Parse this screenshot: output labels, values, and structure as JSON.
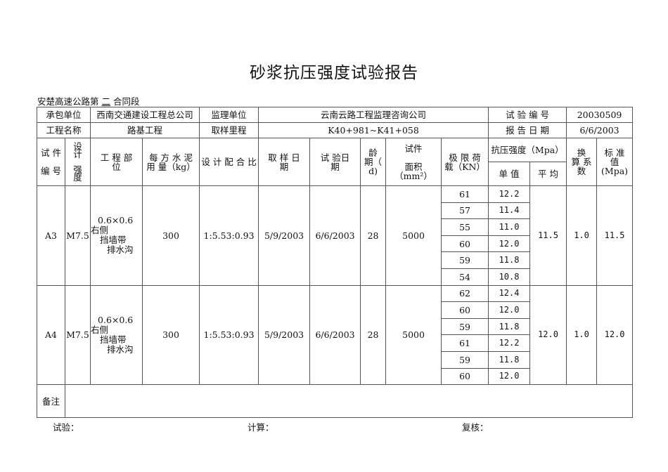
{
  "title": "砂浆抗压强度试验报告",
  "subtitle": {
    "prefix": "安楚高速公路第",
    "section": "二",
    "suffix": "合同段"
  },
  "info": {
    "contractor_label": "承包单位",
    "contractor": "西南交通建设工程总公司",
    "supervisor_label": "监理单位",
    "supervisor": "云南云路工程监理咨询公司",
    "test_no_label": "试 验 编 号",
    "test_no": "20030509",
    "project_label": "工程名称",
    "project": "路基工程",
    "mileage_label": "取样里程",
    "mileage": "K40+981~K41+058",
    "report_date_label": "报 告 日 期",
    "report_date": "6/6/2003"
  },
  "headers": {
    "specimen_no": "试 件\n\n编 号",
    "design_strength": "设\n计\n\n强\n度",
    "location": "工 程 部\n位",
    "cement": "每 方 水 泥\n用 量（kg）",
    "mix_ratio": "设 计 配 合 比",
    "sample_date": "取 样 日\n期",
    "test_date": "试 验日\n期",
    "age": "龄\n期（\nd)",
    "area": "试件\n\n面积\n（mm²）",
    "load": "极 限 荷\n载（KN）",
    "strength": "抗压强度（Mpa）",
    "single": "单 值",
    "average": "平 均",
    "factor": "换\n算 系\n数",
    "standard": "标 准\n值\n(Mpa)"
  },
  "groups": [
    {
      "id": "A3",
      "grade": "M7.5",
      "location": [
        "0.6×0.6",
        "右侧",
        "挡墙带",
        "排水沟"
      ],
      "cement": "300",
      "ratio": "1:5.53:0.93",
      "sample_date": "5/9/2003",
      "test_date": "6/6/2003",
      "age": "28",
      "area": "5000",
      "loads": [
        "61",
        "57",
        "55",
        "60",
        "59",
        "54"
      ],
      "singles": [
        "12.2",
        "11.4",
        "11.0",
        "12.0",
        "11.8",
        "10.8"
      ],
      "average": "11.5",
      "factor": "1.0",
      "standard": "11.5"
    },
    {
      "id": "A4",
      "grade": "M7.5",
      "location": [
        "0.6×0.6",
        "右侧",
        "挡墙带",
        "排水沟"
      ],
      "cement": "300",
      "ratio": "1:5.53:0.93",
      "sample_date": "5/9/2003",
      "test_date": "6/6/2003",
      "age": "28",
      "area": "5000",
      "loads": [
        "62",
        "60",
        "59",
        "61",
        "59",
        "60"
      ],
      "singles": [
        "12.4",
        "12.0",
        "11.8",
        "12.2",
        "11.8",
        "12.0"
      ],
      "average": "12.0",
      "factor": "1.0",
      "standard": "12.0"
    }
  ],
  "remarks_label": "备注",
  "remarks": "",
  "footer": {
    "test": "试验：",
    "calc": "计算：",
    "review": "复核："
  }
}
